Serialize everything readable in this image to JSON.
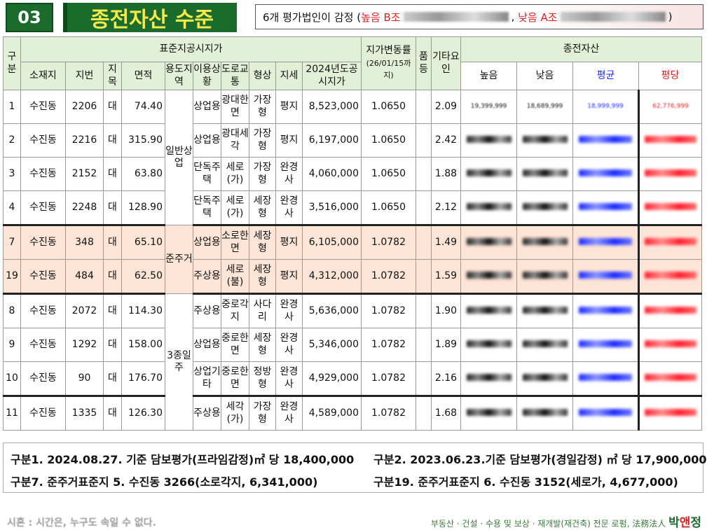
{
  "header": {
    "number": "03",
    "title": "종전자산 수준",
    "note_prefix": "6개 평가법인이 감정 (",
    "note_high": "높음 B조",
    "note_low": "낮음 A조",
    "note_suffix": ")"
  },
  "table": {
    "group_std": "표준지공시지가",
    "group_prev": "종전자산",
    "col_gubun": "구분",
    "col_location": "소재지",
    "col_lot": "지번",
    "col_category": "지목",
    "col_area": "면적",
    "col_zone": "용도지역",
    "col_usage": "이용상황",
    "col_road": "도로교통",
    "col_shape": "형상",
    "col_terrain": "지세",
    "col_price": "2024년도공시지가",
    "col_change": "지가변동률",
    "col_change_note": "(26/01/15까지)",
    "col_quality": "품등",
    "col_other": "기타요인",
    "col_high": "높음",
    "col_low": "낮음",
    "col_avg": "평균",
    "col_pyeong": "평당",
    "zone_1": "일반상업",
    "zone_2": "준주거",
    "zone_3": "3종일주",
    "rows": [
      {
        "gubun": "1",
        "loc": "수진동",
        "lot": "2206",
        "cat": "대",
        "area": "74.40",
        "usage": "상업용",
        "road": "광대한면",
        "shape": "가장형",
        "terrain": "평지",
        "price": "8,523,000",
        "change": "1.0650",
        "other": "2.09",
        "high": "19,399,999",
        "low": "18,689,999",
        "avg": "18,999,999",
        "pyeong": "62,776,999"
      },
      {
        "gubun": "2",
        "loc": "수진동",
        "lot": "2216",
        "cat": "대",
        "area": "315.90",
        "usage": "상업용",
        "road": "광대세각",
        "shape": "가장형",
        "terrain": "평지",
        "price": "6,197,000",
        "change": "1.0650",
        "other": "2.42"
      },
      {
        "gubun": "3",
        "loc": "수진동",
        "lot": "2152",
        "cat": "대",
        "area": "63.80",
        "usage": "단독주택",
        "road": "세로(가)",
        "shape": "가장형",
        "terrain": "완경사",
        "price": "4,060,000",
        "change": "1.0650",
        "other": "1.88"
      },
      {
        "gubun": "4",
        "loc": "수진동",
        "lot": "2248",
        "cat": "대",
        "area": "128.90",
        "usage": "단독주택",
        "road": "세로(가)",
        "shape": "세장형",
        "terrain": "완경사",
        "price": "3,516,000",
        "change": "1.0650",
        "other": "2.12"
      },
      {
        "gubun": "7",
        "loc": "수진동",
        "lot": "348",
        "cat": "대",
        "area": "65.10",
        "usage": "상업용",
        "road": "소로한면",
        "shape": "세장형",
        "terrain": "평지",
        "price": "6,105,000",
        "change": "1.0782",
        "other": "1.49"
      },
      {
        "gubun": "19",
        "loc": "수진동",
        "lot": "484",
        "cat": "대",
        "area": "62.50",
        "usage": "주상용",
        "road": "세로(불)",
        "shape": "세장형",
        "terrain": "평지",
        "price": "4,312,000",
        "change": "1.0782",
        "other": "1.59"
      },
      {
        "gubun": "8",
        "loc": "수진동",
        "lot": "2072",
        "cat": "대",
        "area": "114.30",
        "usage": "주상용",
        "road": "중로각지",
        "shape": "사다리",
        "terrain": "완경사",
        "price": "5,636,000",
        "change": "1.0782",
        "other": "1.90"
      },
      {
        "gubun": "9",
        "loc": "수진동",
        "lot": "1292",
        "cat": "대",
        "area": "158.00",
        "usage": "상업용",
        "road": "중로한면",
        "shape": "세장형",
        "terrain": "완경사",
        "price": "5,346,000",
        "change": "1.0782",
        "other": "1.89"
      },
      {
        "gubun": "10",
        "loc": "수진동",
        "lot": "90",
        "cat": "대",
        "area": "176.70",
        "usage": "상업기타",
        "road": "중로한면",
        "shape": "정방형",
        "terrain": "완경사",
        "price": "4,929,000",
        "change": "1.0782",
        "other": "2.16"
      },
      {
        "gubun": "11",
        "loc": "수진동",
        "lot": "1335",
        "cat": "대",
        "area": "126.30",
        "usage": "주상용",
        "road": "세각(가)",
        "shape": "가장형",
        "terrain": "완경사",
        "price": "4,589,000",
        "change": "1.0782",
        "other": "1.68"
      }
    ]
  },
  "footnotes": {
    "n1": "구분1. 2024.08.27. 기준 담보평가(프라임감정)㎡ 당 18,400,000",
    "n2": "구분2. 2023.06.23.기준 담보평가(경일감정) ㎡ 당 17,900,000",
    "n3": "구분7. 준주거표준지 5. 수진동 3266(소로각지, 6,341,000)",
    "n4": "구분19. 준주거표준지 6. 수진동 3152(세로가, 4,677,000)"
  },
  "bottom": {
    "left": "시혼 : 시간은, 누구도 속일 수 없다.",
    "right": "부동산 · 건설 · 수용 및 보상 · 재개발(재건축) 전문 로펌, 法務法人",
    "brand_a": "박",
    "brand_b": "앤",
    "brand_c": "정"
  }
}
